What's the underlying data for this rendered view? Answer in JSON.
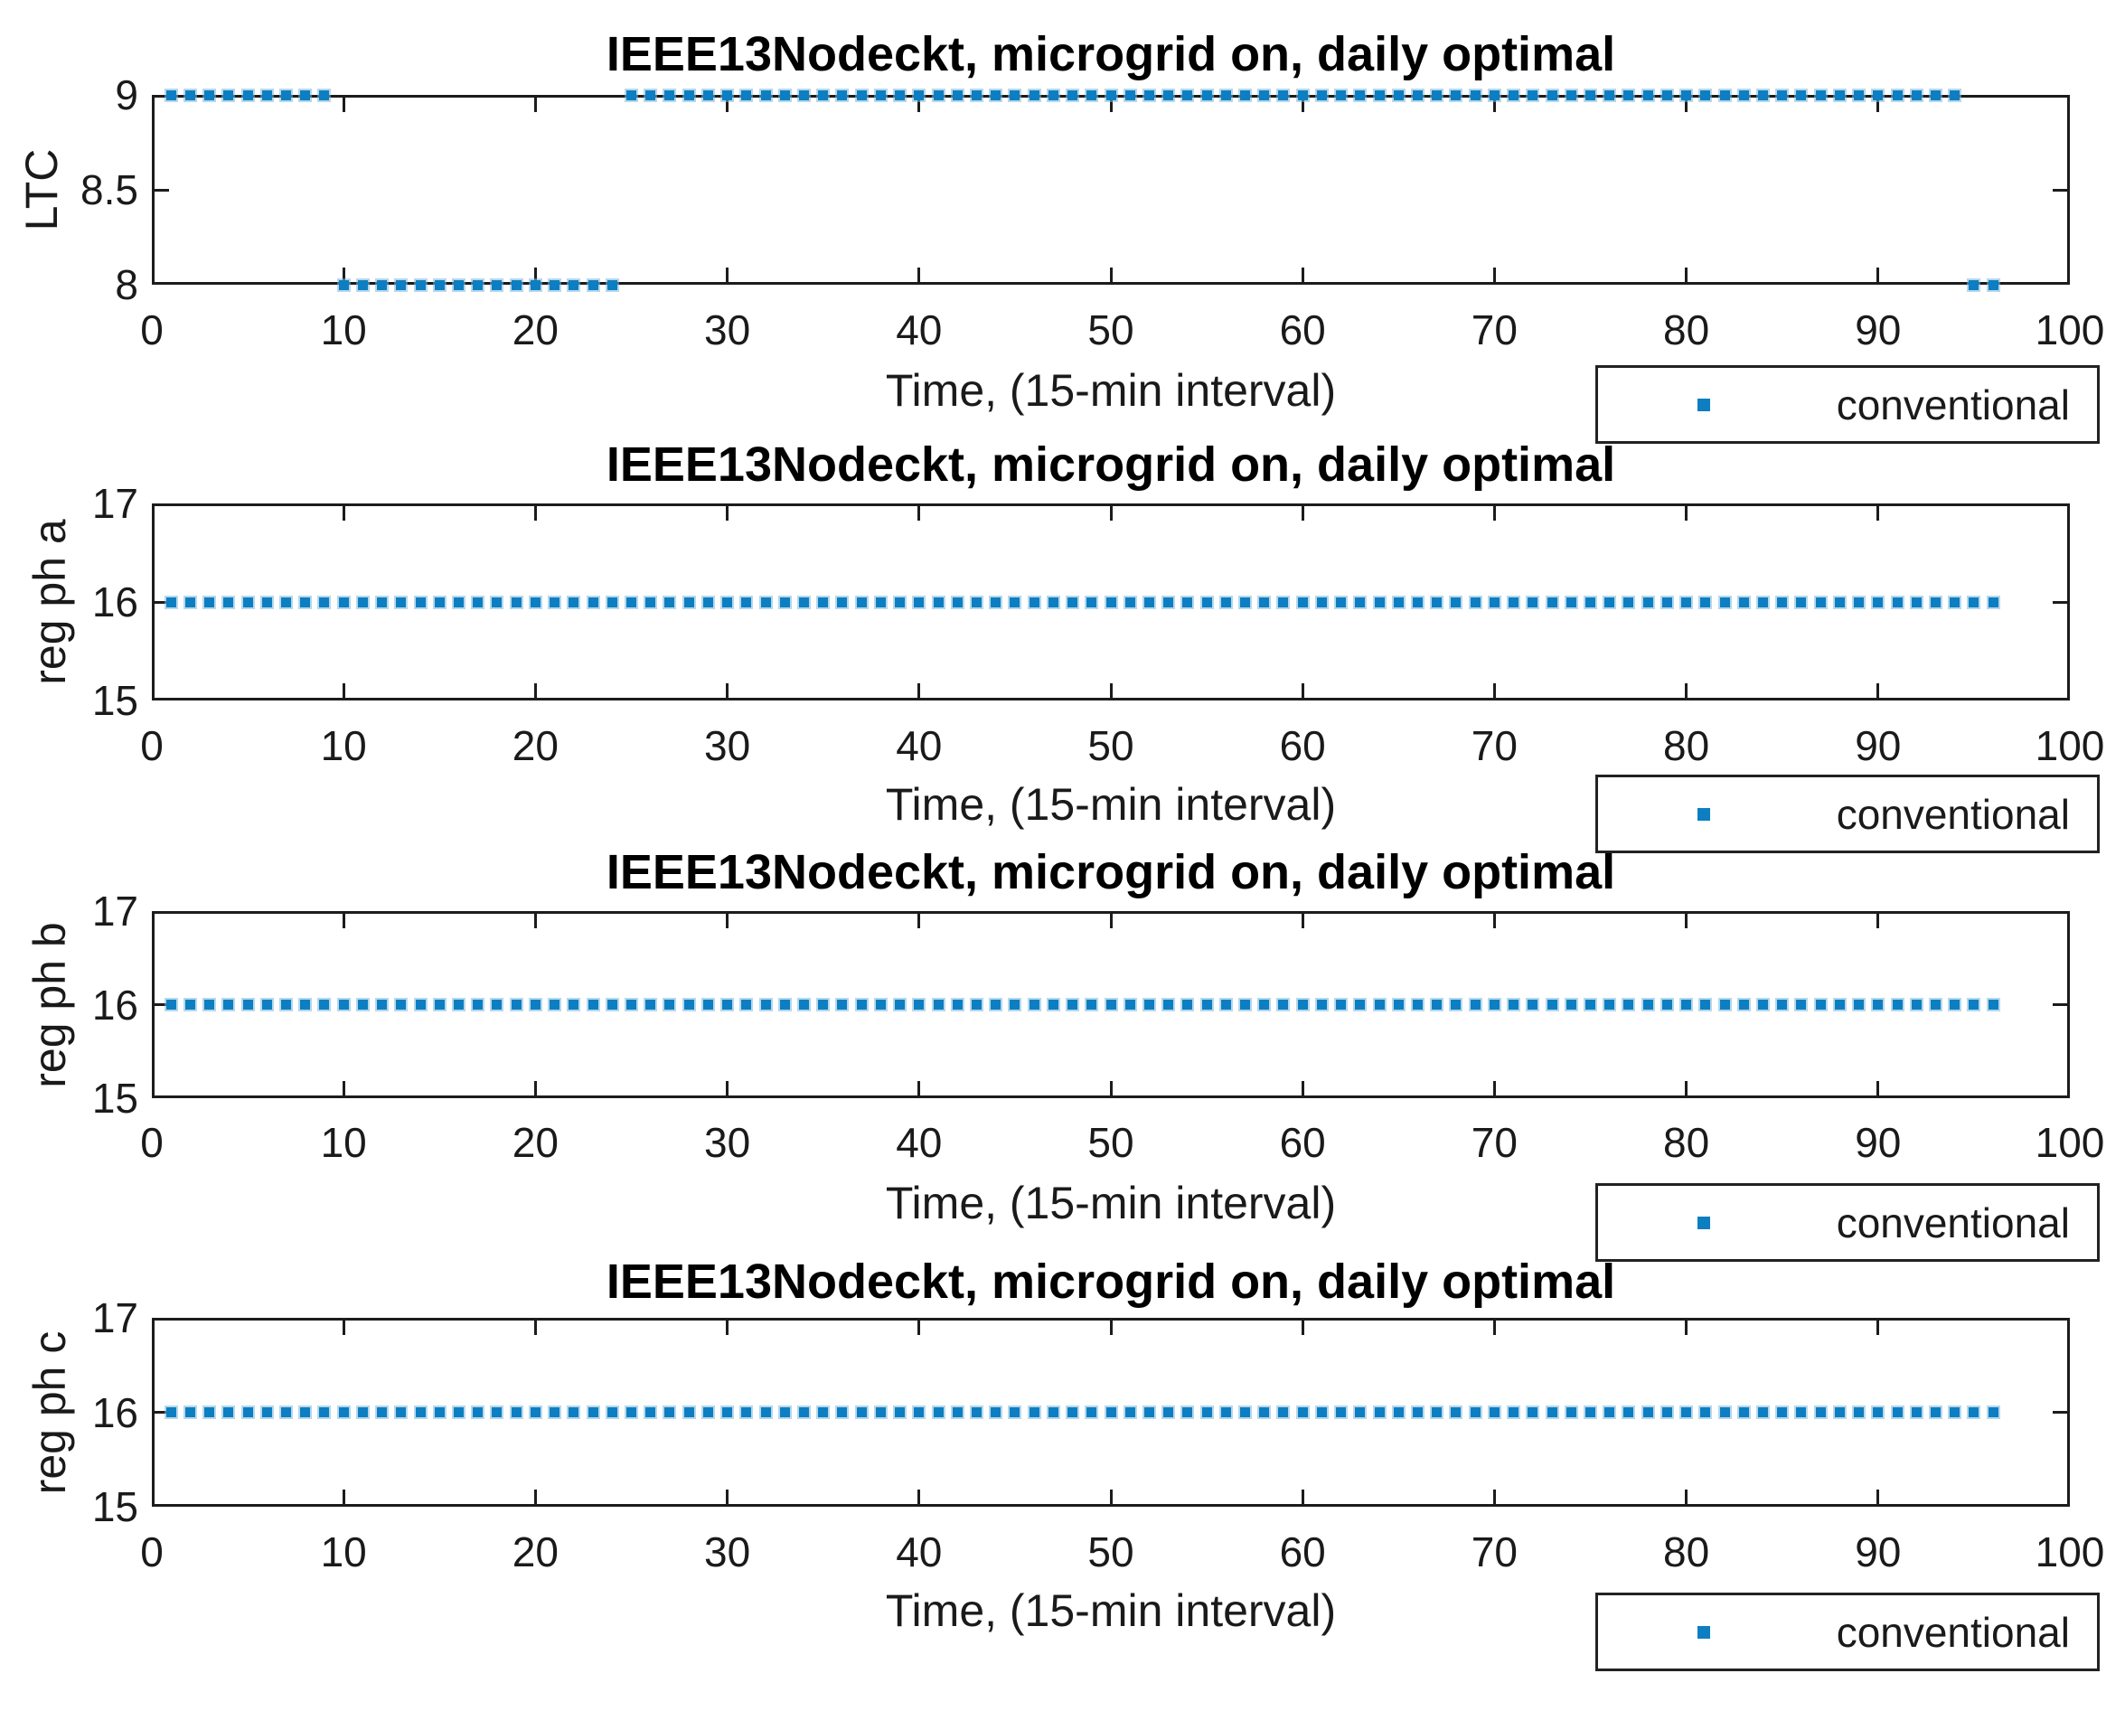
{
  "figure": {
    "background": "#ffffff",
    "axis_color": "#1c1c1c",
    "text_color": "#1a1a1a",
    "accent_color": "#0d7ec1"
  },
  "chart_data": [
    {
      "type": "scatter",
      "title": "IEEE13Nodeckt, microgrid on, daily optimal",
      "xlabel": "Time, (15-min interval)",
      "ylabel": "LTC",
      "xlim": [
        0,
        100
      ],
      "xticks": [
        0,
        10,
        20,
        30,
        40,
        50,
        60,
        70,
        80,
        90,
        100
      ],
      "ylim": [
        8,
        9
      ],
      "yticks": [
        8,
        8.5,
        9
      ],
      "ytick_labels": [
        "8",
        "8.5",
        "9"
      ],
      "grid": false,
      "legend": {
        "position": "below-right",
        "entries": [
          {
            "label": "conventional",
            "marker": "square",
            "color": "#0d7ec1"
          }
        ]
      },
      "series": [
        {
          "name": "conventional",
          "marker": "square",
          "color": "#0d7ec1",
          "x_step": 1,
          "segments": [
            {
              "x_from": 1,
              "x_to": 9,
              "y": 9
            },
            {
              "x_from": 10,
              "x_to": 24,
              "y": 8
            },
            {
              "x_from": 25,
              "x_to": 94,
              "y": 9
            },
            {
              "x_from": 95,
              "x_to": 96,
              "y": 8
            }
          ]
        }
      ]
    },
    {
      "type": "scatter",
      "title": "IEEE13Nodeckt, microgrid on, daily optimal",
      "xlabel": "Time, (15-min interval)",
      "ylabel": "reg ph a",
      "xlim": [
        0,
        100
      ],
      "xticks": [
        0,
        10,
        20,
        30,
        40,
        50,
        60,
        70,
        80,
        90,
        100
      ],
      "ylim": [
        15,
        17
      ],
      "yticks": [
        15,
        16,
        17
      ],
      "ytick_labels": [
        "15",
        "16",
        "17"
      ],
      "grid": false,
      "legend": {
        "position": "below-right",
        "entries": [
          {
            "label": "conventional",
            "marker": "square",
            "color": "#0d7ec1"
          }
        ]
      },
      "series": [
        {
          "name": "conventional",
          "marker": "square",
          "color": "#0d7ec1",
          "x_step": 1,
          "segments": [
            {
              "x_from": 1,
              "x_to": 96,
              "y": 16
            }
          ]
        }
      ]
    },
    {
      "type": "scatter",
      "title": "IEEE13Nodeckt, microgrid on, daily optimal",
      "xlabel": "Time, (15-min interval)",
      "ylabel": "reg ph b",
      "xlim": [
        0,
        100
      ],
      "xticks": [
        0,
        10,
        20,
        30,
        40,
        50,
        60,
        70,
        80,
        90,
        100
      ],
      "ylim": [
        15,
        17
      ],
      "yticks": [
        15,
        16,
        17
      ],
      "ytick_labels": [
        "15",
        "16",
        "17"
      ],
      "grid": false,
      "legend": {
        "position": "below-right",
        "entries": [
          {
            "label": "conventional",
            "marker": "square",
            "color": "#0d7ec1"
          }
        ]
      },
      "series": [
        {
          "name": "conventional",
          "marker": "square",
          "color": "#0d7ec1",
          "x_step": 1,
          "segments": [
            {
              "x_from": 1,
              "x_to": 96,
              "y": 16
            }
          ]
        }
      ]
    },
    {
      "type": "scatter",
      "title": "IEEE13Nodeckt, microgrid on, daily optimal",
      "xlabel": "Time, (15-min interval)",
      "ylabel": "reg ph c",
      "xlim": [
        0,
        100
      ],
      "xticks": [
        0,
        10,
        20,
        30,
        40,
        50,
        60,
        70,
        80,
        90,
        100
      ],
      "ylim": [
        15,
        17
      ],
      "yticks": [
        15,
        16,
        17
      ],
      "ytick_labels": [
        "15",
        "16",
        "17"
      ],
      "grid": false,
      "legend": {
        "position": "below-right",
        "entries": [
          {
            "label": "conventional",
            "marker": "square",
            "color": "#0d7ec1"
          }
        ]
      },
      "series": [
        {
          "name": "conventional",
          "marker": "square",
          "color": "#0d7ec1",
          "x_step": 1,
          "segments": [
            {
              "x_from": 1,
              "x_to": 96,
              "y": 16
            }
          ]
        }
      ]
    }
  ]
}
